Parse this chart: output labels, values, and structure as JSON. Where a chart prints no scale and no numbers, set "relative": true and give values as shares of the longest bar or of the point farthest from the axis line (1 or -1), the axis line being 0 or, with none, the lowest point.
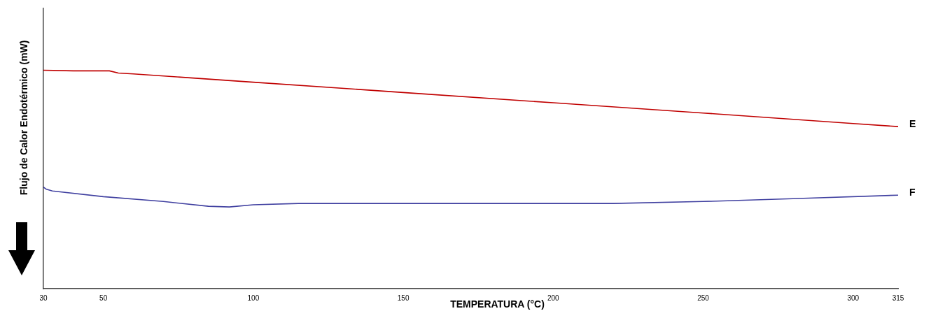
{
  "chart_data": {
    "type": "line",
    "xlabel": "TEMPERATURA (°C)",
    "ylabel": "Flujo de Calor Endotérmico (mW)",
    "relative": true,
    "xlim": [
      30,
      315
    ],
    "xticks": [
      30,
      50,
      100,
      150,
      200,
      250,
      300,
      315
    ],
    "tick_labels": "x",
    "grid": false,
    "legend": false,
    "marker": "none",
    "series": [
      {
        "name": "E",
        "color": "#c00000",
        "x": [
          30,
          40,
          52,
          55,
          60,
          100,
          150,
          200,
          250,
          300,
          315
        ],
        "values": [
          1.0,
          0.997,
          0.997,
          0.987,
          0.983,
          0.945,
          0.898,
          0.851,
          0.804,
          0.756,
          0.742
        ]
      },
      {
        "name": "F",
        "color": "#4040a0",
        "x": [
          30,
          31,
          33,
          50,
          70,
          85,
          92,
          100,
          115,
          150,
          200,
          220,
          250,
          280,
          315
        ],
        "values": [
          0.465,
          0.455,
          0.447,
          0.421,
          0.399,
          0.377,
          0.374,
          0.384,
          0.39,
          0.39,
          0.39,
          0.39,
          0.399,
          0.412,
          0.428
        ]
      }
    ]
  }
}
